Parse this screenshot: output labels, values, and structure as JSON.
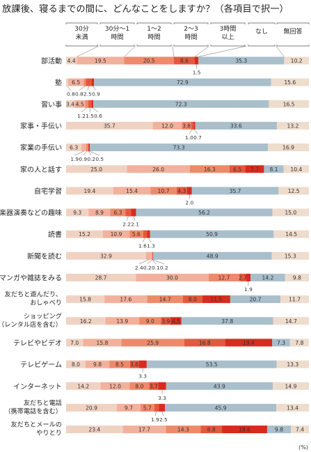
{
  "chart_data": {
    "type": "bar",
    "title": "放課後、寝るまでの間に、どんなことをしますか？（各項目で択一）",
    "unit": "(%)",
    "categories_legend": [
      "30分\n未満",
      "30分～1\n時間",
      "1～2\n時間",
      "2～3\n時間",
      "3時間\n以上",
      "なし",
      "無回答"
    ],
    "colors": [
      "#f0d2c3",
      "#f2b19c",
      "#ee8a6a",
      "#e4593d",
      "#d82b1f",
      "#a9bfcc",
      "#eedccd"
    ],
    "rows": [
      {
        "label": "部活動",
        "values": [
          4.4,
          19.5,
          20.5,
          8.6,
          1.5,
          35.3,
          10.2
        ],
        "shown": [
          "4.4",
          "19.5",
          "20.5",
          "8.6",
          "",
          "35.3",
          "10.2"
        ],
        "below": [
          "1.5"
        ]
      },
      {
        "label": "塾",
        "values": [
          0.8,
          6.5,
          0.8,
          2.5,
          0.9,
          72.9,
          15.6
        ],
        "shown": [
          "",
          "6.5",
          "",
          "",
          "",
          "72.9",
          "15.6"
        ],
        "below": [
          "0.8",
          "0.8",
          "2.5",
          "0.9"
        ]
      },
      {
        "label": "習い事",
        "values": [
          3.4,
          4.5,
          1.2,
          1.5,
          0.6,
          72.3,
          16.5
        ],
        "shown": [
          "3.4",
          "4.5",
          "",
          "",
          "",
          "72.3",
          "16.5"
        ],
        "below": [
          "1.2",
          "1.5",
          "0.6"
        ]
      },
      {
        "label": "家事・手伝い",
        "values": [
          35.7,
          12.0,
          3.8,
          1.0,
          0.7,
          33.6,
          13.2
        ],
        "shown": [
          "35.7",
          "12.0",
          "3.8",
          "",
          "",
          "33.6",
          "13.2"
        ],
        "below": [
          "1.0",
          "0.7"
        ]
      },
      {
        "label": "家業の手伝い",
        "values": [
          6.3,
          1.9,
          0.9,
          0.2,
          0.5,
          73.3,
          16.9
        ],
        "shown": [
          "6.3",
          "",
          "",
          "",
          "",
          "73.3",
          "16.9"
        ],
        "below": [
          "1.9",
          "0.9",
          "0.2",
          "0.5"
        ]
      },
      {
        "label": "家の人と話す",
        "values": [
          25.0,
          26.0,
          16.3,
          6.5,
          7.7,
          8.1,
          10.4
        ],
        "shown": [
          "25.0",
          "26.0",
          "16.3",
          "6.5",
          "7.7",
          "8.1",
          "10.4"
        ],
        "below": []
      },
      {
        "label": "自宅学習",
        "values": [
          19.4,
          15.4,
          10.7,
          4.3,
          2.0,
          35.7,
          12.5
        ],
        "shown": [
          "19.4",
          "15.4",
          "10.7",
          "4.3",
          "",
          "35.7",
          "12.5"
        ],
        "below": [
          "2.0"
        ]
      },
      {
        "label": "楽器演奏などの趣味",
        "values": [
          9.3,
          8.9,
          6.3,
          2.2,
          2.1,
          56.2,
          15.0
        ],
        "shown": [
          "9.3",
          "8.9",
          "6.3",
          "",
          "",
          "56.2",
          "15.0"
        ],
        "below": [
          "2.2",
          "2.1"
        ]
      },
      {
        "label": "読書",
        "values": [
          15.2,
          10.9,
          5.6,
          1.6,
          1.3,
          50.9,
          14.5
        ],
        "shown": [
          "15.2",
          "10.9",
          "5.6",
          "",
          "",
          "50.9",
          "14.5"
        ],
        "below": [
          "1.6",
          "1.3"
        ]
      },
      {
        "label": "新聞を読む",
        "values": [
          32.9,
          2.4,
          0.2,
          0.1,
          0.2,
          48.9,
          15.3
        ],
        "shown": [
          "32.9",
          "",
          "",
          "",
          "",
          "48.9",
          "15.3"
        ],
        "below": [
          "2.4",
          "0.2",
          "0.1",
          "0.2"
        ]
      },
      {
        "label": "マンガや雑誌をみる",
        "values": [
          28.7,
          30.0,
          12.7,
          2.7,
          1.9,
          14.2,
          9.8
        ],
        "shown": [
          "28.7",
          "30.0",
          "12.7",
          "2.7",
          "",
          "14.2",
          "9.8"
        ],
        "below": [
          "1.9"
        ]
      },
      {
        "label": "友だちと遊んだり、\nおしゃべり",
        "values": [
          15.8,
          17.6,
          14.7,
          8.0,
          11.5,
          20.7,
          11.7
        ],
        "shown": [
          "15.8",
          "17.6",
          "14.7",
          "8.0",
          "11.5",
          "20.7",
          "11.7"
        ],
        "below": []
      },
      {
        "label": "ショッピング\n（レンタル店を含む）",
        "values": [
          16.2,
          13.9,
          9.0,
          3.9,
          4.5,
          37.8,
          14.7
        ],
        "shown": [
          "16.2",
          "13.9",
          "9.0",
          "3.9",
          "4.5",
          "37.8",
          "14.7"
        ],
        "below": []
      },
      {
        "label": "テレビやビデオ",
        "values": [
          7.0,
          15.8,
          25.9,
          16.8,
          19.4,
          7.3,
          7.8
        ],
        "shown": [
          "7.0",
          "15.8",
          "25.9",
          "16.8",
          "19.4",
          "7.3",
          "7.8"
        ],
        "below": []
      },
      {
        "label": "テレビゲーム",
        "values": [
          8.0,
          9.8,
          8.5,
          3.6,
          3.3,
          53.5,
          13.3
        ],
        "shown": [
          "8.0",
          "9.8",
          "8.5",
          "3.6",
          "",
          "53.5",
          "13.3"
        ],
        "below": [
          "3.3"
        ]
      },
      {
        "label": "インターネット",
        "values": [
          14.2,
          12.0,
          8.0,
          3.7,
          3.3,
          43.9,
          14.9
        ],
        "shown": [
          "14.2",
          "12.0",
          "8.0",
          "3.7",
          "",
          "43.9",
          "14.9"
        ],
        "below": [
          "3.3"
        ]
      },
      {
        "label": "友だちと電話\n（携帯電話を含む）",
        "values": [
          20.9,
          9.7,
          5.7,
          1.9,
          2.5,
          45.9,
          13.4
        ],
        "shown": [
          "20.9",
          "9.7",
          "5.7",
          "",
          "",
          "45.9",
          "13.4"
        ],
        "below": [
          "1.9",
          "2.5"
        ]
      },
      {
        "label": "友だちとメールの\nやりとり",
        "values": [
          23.4,
          17.7,
          14.3,
          8.8,
          18.6,
          9.8,
          7.4
        ],
        "shown": [
          "23.4",
          "17.7",
          "14.3",
          "8.8",
          "18.6",
          "9.8",
          "7.4"
        ],
        "below": []
      }
    ]
  }
}
